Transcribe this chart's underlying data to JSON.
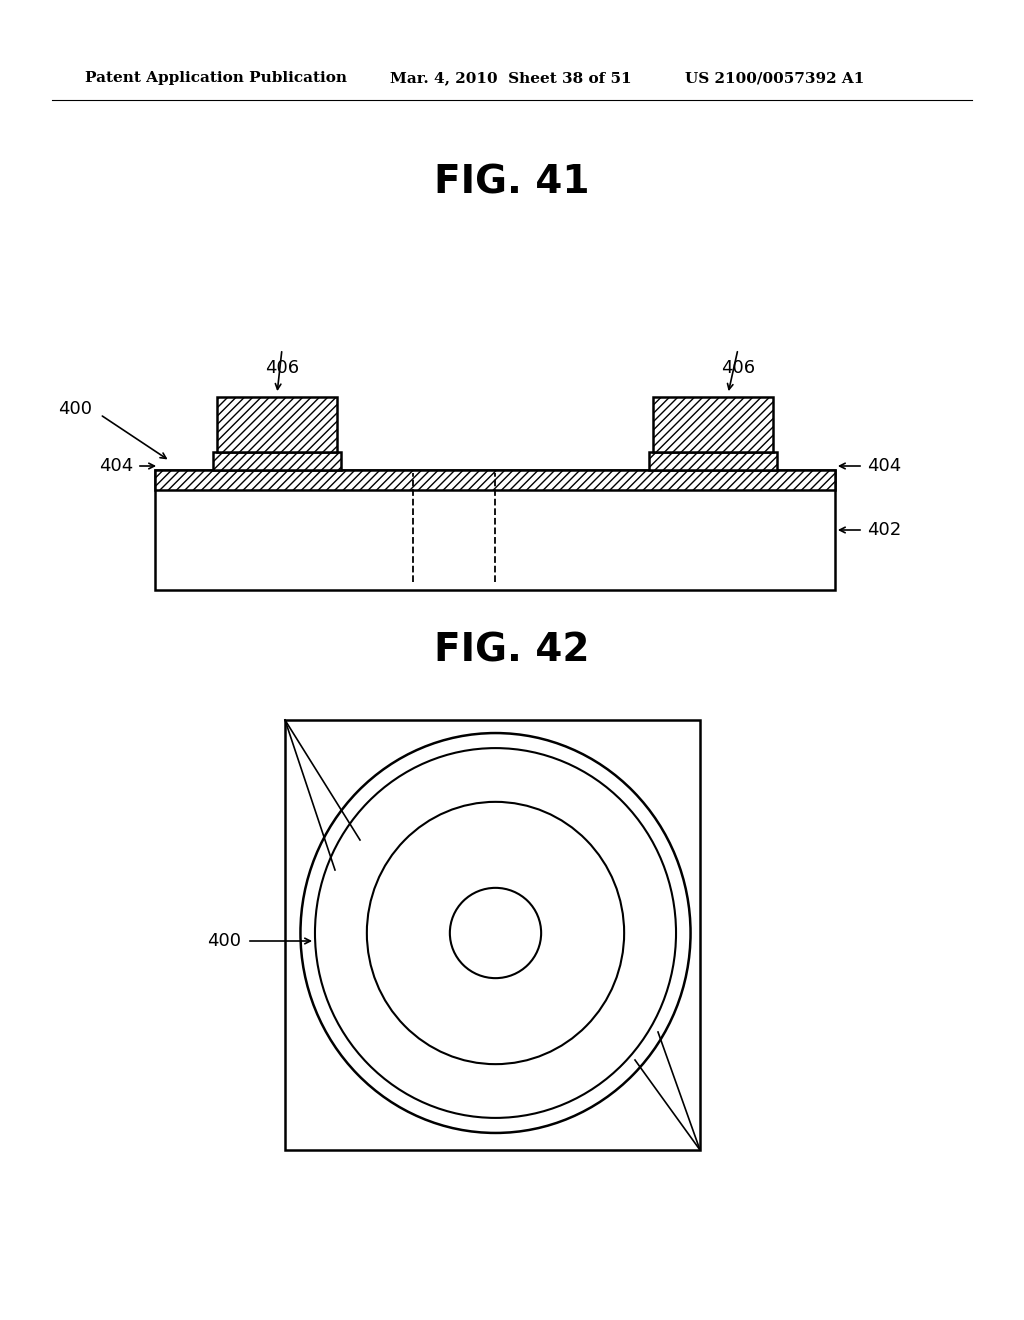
{
  "bg_color": "#ffffff",
  "header_left": "Patent Application Publication",
  "header_mid": "Mar. 4, 2010  Sheet 38 of 51",
  "header_right": "US 2100/0057392 A1",
  "fig41_title": "FIG. 41",
  "fig42_title": "FIG. 42",
  "label_400": "400",
  "label_402": "402",
  "label_404": "404",
  "label_406": "406"
}
